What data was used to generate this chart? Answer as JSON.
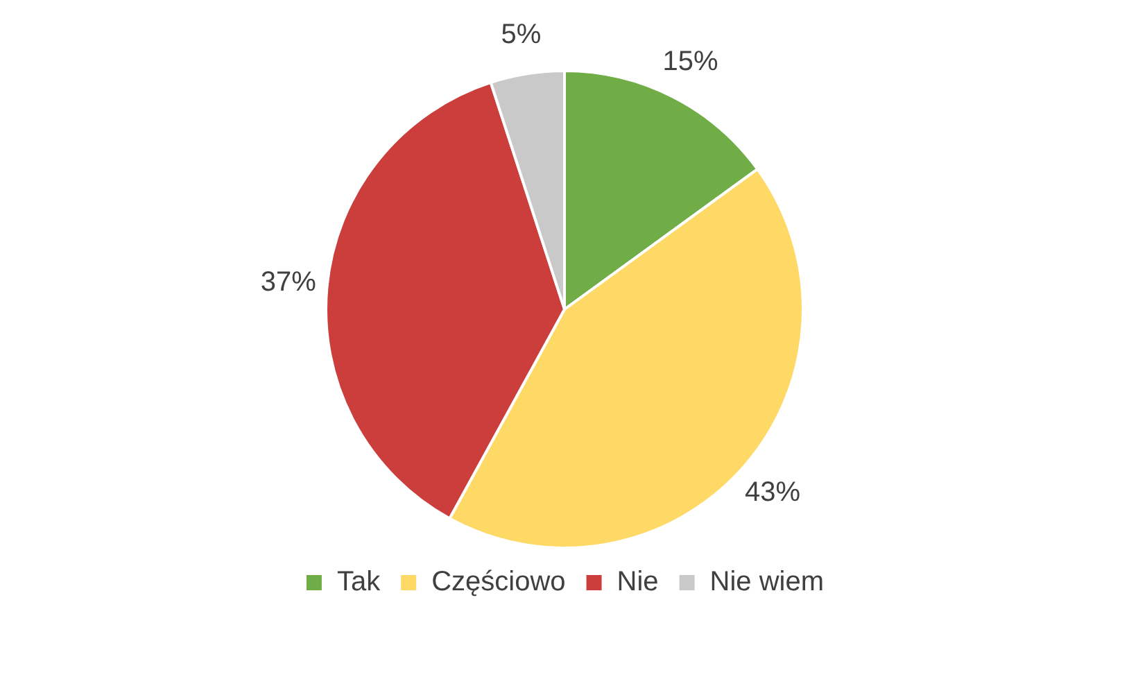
{
  "chart_data": {
    "type": "pie",
    "categories": [
      "Tak",
      "Częściowo",
      "Nie",
      "Nie wiem"
    ],
    "values": [
      15,
      43,
      37,
      5
    ],
    "colors": [
      "#70ad47",
      "#ffd966",
      "#cc3e3c",
      "#c9c9c9"
    ],
    "value_labels": [
      "15%",
      "43%",
      "37%",
      "5%"
    ],
    "legend": "bottom"
  }
}
